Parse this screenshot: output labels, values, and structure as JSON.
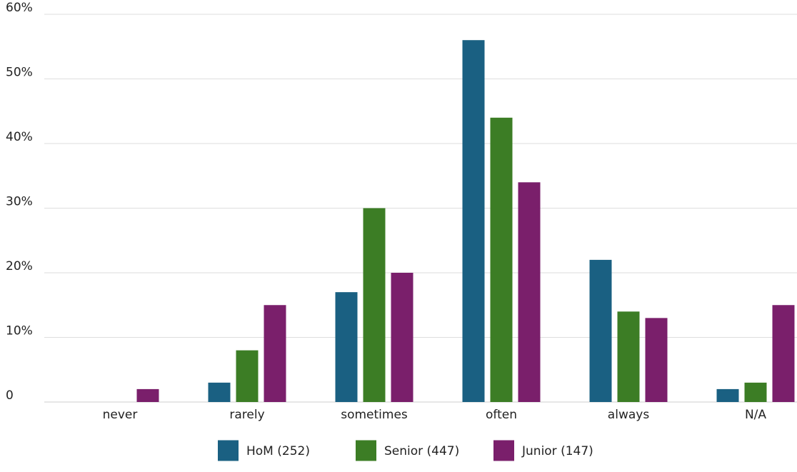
{
  "chart_data": {
    "type": "bar",
    "categories": [
      "never",
      "rarely",
      "sometimes",
      "often",
      "always",
      "N/A"
    ],
    "series": [
      {
        "name": "HoM (252)",
        "color": "#1a6082",
        "values": [
          0,
          3,
          17,
          56,
          22,
          2
        ]
      },
      {
        "name": "Senior (447)",
        "color": "#3c7d25",
        "values": [
          0,
          8,
          30,
          44,
          14,
          3
        ]
      },
      {
        "name": "Junior (147)",
        "color": "#7a1f6b",
        "values": [
          2,
          15,
          20,
          34,
          13,
          15
        ]
      }
    ],
    "y_ticks": [
      "0",
      "10%",
      "20%",
      "30%",
      "40%",
      "50%",
      "60%"
    ],
    "ylim": [
      0,
      60
    ],
    "grid": true,
    "legend_position": "bottom-center"
  }
}
